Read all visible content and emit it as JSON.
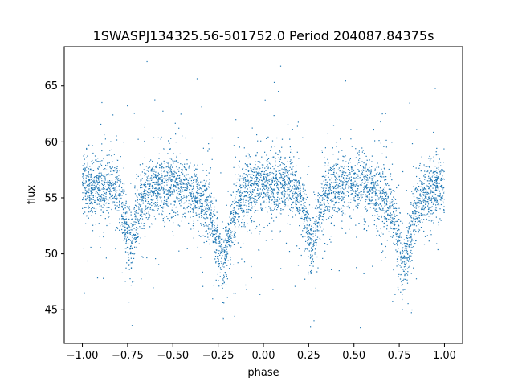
{
  "chart_data": {
    "type": "scatter",
    "title": "1SWASPJ134325.56-501752.0 Period 204087.84375s",
    "xlabel": "phase",
    "ylabel": "flux",
    "xlim": [
      -1.1,
      1.1
    ],
    "ylim": [
      42,
      68.5
    ],
    "xticks": [
      -1.0,
      -0.75,
      -0.5,
      -0.25,
      0.0,
      0.25,
      0.5,
      0.75,
      1.0
    ],
    "xtick_labels": [
      "−1.00",
      "−0.75",
      "−0.50",
      "−0.25",
      "0.00",
      "0.25",
      "0.50",
      "0.75",
      "1.00"
    ],
    "yticks": [
      45,
      50,
      55,
      60,
      65
    ],
    "ytick_labels": [
      "45",
      "50",
      "55",
      "60",
      "65"
    ],
    "grid": false,
    "point_color": "#1f77b4",
    "series": [
      {
        "phase": [
          -1.0,
          -0.95,
          -0.9,
          -0.85,
          -0.8,
          -0.77,
          -0.75,
          -0.73,
          -0.72,
          -0.7,
          -0.68,
          -0.65,
          -0.6,
          -0.55,
          -0.5,
          -0.45,
          -0.4,
          -0.35,
          -0.3,
          -0.27,
          -0.25,
          -0.23,
          -0.22,
          -0.2,
          -0.18,
          -0.15,
          -0.1,
          -0.05,
          0.0,
          0.05,
          0.1,
          0.15,
          0.2,
          0.23,
          0.25,
          0.27,
          0.28,
          0.3,
          0.32,
          0.35,
          0.4,
          0.45,
          0.5,
          0.55,
          0.6,
          0.65,
          0.7,
          0.73,
          0.75,
          0.77,
          0.78,
          0.8,
          0.82,
          0.85,
          0.9,
          0.95,
          1.0
        ],
        "flux": [
          56,
          56,
          56,
          56,
          55.5,
          53.5,
          52,
          51,
          51.5,
          53,
          54.5,
          55.5,
          56,
          56,
          56,
          56,
          55.5,
          55,
          54,
          52,
          50.5,
          49.5,
          49.5,
          50.5,
          52.5,
          54.5,
          55.5,
          56,
          56,
          56,
          56,
          56,
          55,
          53.5,
          52,
          51,
          51.5,
          53,
          54.5,
          55.5,
          56,
          56,
          56,
          56,
          55.5,
          55,
          54,
          52,
          50.5,
          49.5,
          49.5,
          50.5,
          52.5,
          54.5,
          55.5,
          56,
          56
        ]
      }
    ]
  }
}
